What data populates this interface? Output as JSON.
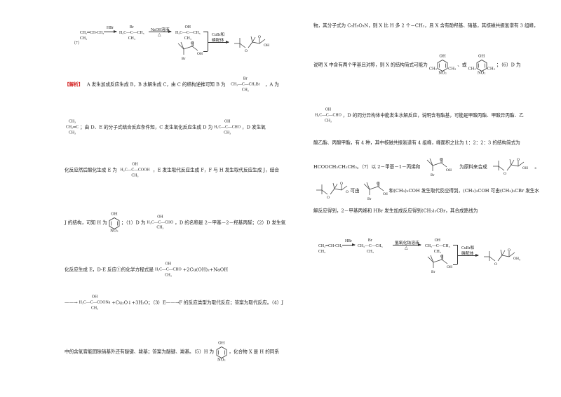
{
  "left_scheme": {
    "label": "（7）",
    "start": {
      "t": "",
      "m": "CH₂═CH-CH₃",
      "b": "CH₃"
    },
    "step1_reagent": "HBr",
    "intermediate1": {
      "t": "Br",
      "m": "H₃C—C—CH₃",
      "b": "CH₃"
    },
    "step2_reagent": "NaOH溶液",
    "step2_condition": "△",
    "intermediate2": {
      "t": "OH",
      "m": "H₃C—C—CH₃",
      "b": "CH₃"
    },
    "step3_reagent": "CuBr和",
    "step3_reagent2": "磷配体"
  },
  "right_scheme": {
    "start": {
      "t": "",
      "m": "CH₂═CH-CH₃",
      "b": "CH₃"
    },
    "step1_reagent": "HBr",
    "intermediate1": {
      "t": "Br",
      "m": "CH₃—C—CH₃",
      "b": "CH₃"
    },
    "step2_reagent": "氢氧化钠溶液",
    "step2_condition": "△",
    "intermediate2": {
      "t": "OH",
      "m": "CH₃—C—CH₃",
      "b": "CH₃"
    },
    "step3_reagent": "CuBr和",
    "step3_reagent2": "磷配体",
    "end_punct": "。"
  },
  "skeletal": {
    "bromo_acid": {
      "o": "O",
      "oh": "OH",
      "br": "Br"
    },
    "ether_acid": {
      "o": "O",
      "oh": "OH",
      "ether_o": "O"
    }
  },
  "rings": {
    "h": {
      "top": "OH",
      "bottom": "NO₂",
      "left": "",
      "right": ""
    },
    "x1": {
      "top": "OH",
      "bottom": "NO₂",
      "left": "CH₃",
      "right": "CH₃"
    },
    "x2": {
      "top": "OH",
      "bottom": "NO₂",
      "left": "CH₃",
      "right": "CH₃"
    }
  },
  "left_lines": [
    [
      {
        "red": "【解析】"
      },
      "A 发生加成反应生成 B，B 水解生成 C，由 C 的结构逆推可知 B 为",
      {
        "st": [
          "Br",
          "CH₃—C—CH₂Br",
          "CH₃"
        ]
      },
      "，A 为"
    ],
    [
      {
        "st": [
          "CH₃",
          "CH₂═C",
          "CH₃"
        ]
      },
      "；由 D、E 的分子式结合反应条件知，C 发生氧化反应生成 D 为",
      {
        "st": [
          "OH",
          "H₃C—C—CHO",
          "CH₃"
        ]
      },
      "，D 发生氧"
    ],
    [
      "化反应然后酸化生成 E 为",
      {
        "st": [
          "OH",
          "H₃C—C—COOH",
          "CH₃"
        ]
      },
      "，E 发生取代反应生成 F，F 与 H 发生取代反应生成 J，结合"
    ],
    [
      "J 的结构，可知 H 为",
      {
        "ring": "h"
      },
      "；（1）D 为",
      {
        "st": [
          "OH",
          "H₃C—C—CHO",
          "CH₃"
        ]
      },
      "，D 的名称是 2－甲基－2－羟基丙醛；（2）D 发生氧"
    ],
    [
      "化反应生成 E，D-E 反应①的化学方程式是",
      {
        "st": [
          "OH",
          "H₃C—C—CHO",
          "CH₃"
        ]
      },
      "+2Cu(OH)₂+NaOH"
    ],
    [
      "——→",
      {
        "st": [
          "OH",
          "H₃C—C—COONa",
          "CH₃"
        ]
      },
      "+Cu₂O↓+3H₂O；（3）E——→F 的反应类型为取代反应；答案为取代反应。（4）J"
    ],
    [
      "中的含氧官能团除硝基外还有醚键、羧基；答案为醚键、羧基。（5）H 为",
      {
        "ring": "h"
      },
      "，化合物 X 是 H 的同系"
    ]
  ],
  "right_lines": [
    [
      "物，其分子式为 C₈H₉O₃N，则 X 比 H 多 2 个－CH₂，且 X 含有酚羟基、硝基，其核磁共振氢谱有 3 组峰，"
    ],
    [
      "说明 X 中含有两个甲基且对称，则 X 的结构简式可能为",
      {
        "ring": "x1"
      },
      "、或",
      {
        "ring": "x2"
      },
      "；（6）D 为"
    ],
    [
      {
        "st": [
          "OH",
          "H₃C—C—CHO",
          "CH₃"
        ]
      },
      "，D 的同分异构体中能发生水解反应，说明含有酯基，可能是甲酸丙酯、甲酸异丙酯、乙"
    ],
    [
      "酸乙酯、丙酸甲酯，有 4 种，其中核磁共振氢谱有 4 组峰，峰面积之比为 1：2：2：3 的结构简式为"
    ],
    [
      "HCOOCH₂CH₂CH₃。（7）以 2－甲基－1－丙烯和",
      {
        "sk": "bromo_acid"
      },
      "为原料来合成",
      {
        "sk": "ether_acid"
      },
      "。"
    ],
    [
      {
        "sk": "ether_acid"
      },
      "可由",
      {
        "sk": "bromo_acid"
      },
      "和(CH₃)₃COH 发生取代反应得到，(CH₃)₃COH 可由(CH₃)₃CBr 发生水"
    ],
    [
      "解反应得到，2－甲基丙烯和 HBr 发生加成反应得到(CH₃)₃CBr，其合成路线为"
    ]
  ]
}
